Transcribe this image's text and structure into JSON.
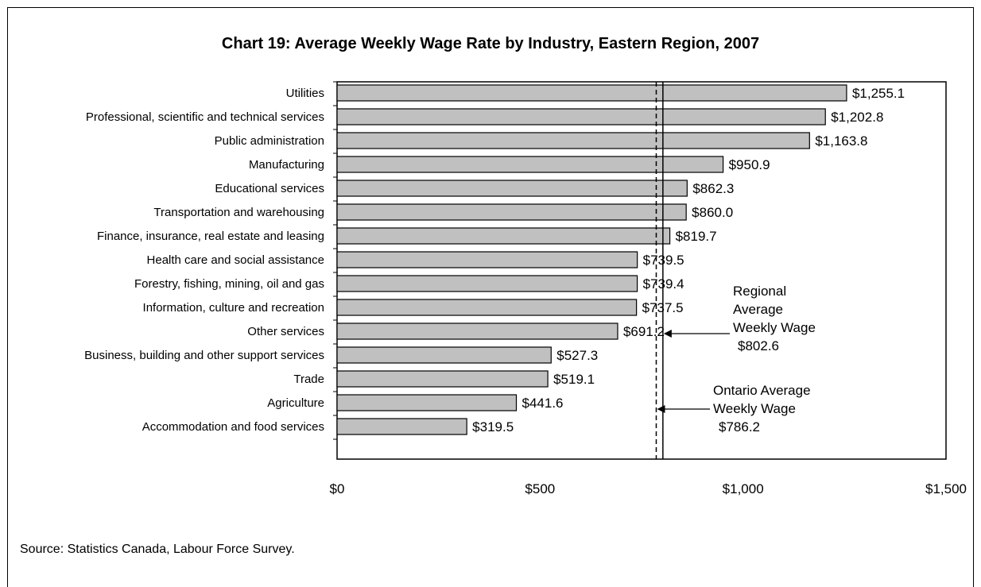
{
  "chart_data": {
    "type": "bar",
    "orientation": "horizontal",
    "title": "Chart 19: Average Weekly Wage Rate by Industry, Eastern Region, 2007",
    "source": "Source:  Statistics Canada, Labour Force Survey.",
    "categories": [
      "Utilities",
      "Professional, scientific and technical services",
      "Public administration",
      "Manufacturing",
      "Educational services",
      "Transportation and warehousing",
      "Finance, insurance, real estate and leasing",
      "Health care and social assistance",
      "Forestry, fishing, mining, oil and gas",
      "Information, culture and recreation",
      "Other services",
      "Business, building and other support services",
      "Trade",
      "Agriculture",
      "Accommodation and food services"
    ],
    "values": [
      1255.1,
      1202.8,
      1163.8,
      950.9,
      862.3,
      860.0,
      819.7,
      739.5,
      739.4,
      737.5,
      691.2,
      527.3,
      519.1,
      441.6,
      319.5
    ],
    "value_labels": [
      "$1,255.1",
      "$1,202.8",
      "$1,163.8",
      "$950.9",
      "$862.3",
      "$860.0",
      "$819.7",
      "$739.5",
      "$739.4",
      "$737.5",
      "$691.2",
      "$527.3",
      "$519.1",
      "$441.6",
      "$319.5"
    ],
    "xlim": [
      0,
      1500
    ],
    "x_ticks": [
      0,
      500,
      1000,
      1500
    ],
    "x_tick_labels": [
      "$0",
      "$500",
      "$1,000",
      "$1,500"
    ],
    "xlabel": "",
    "ylabel": "",
    "grid": false,
    "bar_color": "#c0c0c0",
    "bar_edge_color": "#000000",
    "reference_lines": [
      {
        "value": 802.6,
        "style": "solid",
        "label_lines": [
          "Regional",
          "Average",
          "Weekly Wage",
          "$802.6"
        ]
      },
      {
        "value": 786.2,
        "style": "dashed",
        "label_lines": [
          "Ontario Average",
          "Weekly Wage",
          "$786.2"
        ]
      }
    ]
  }
}
